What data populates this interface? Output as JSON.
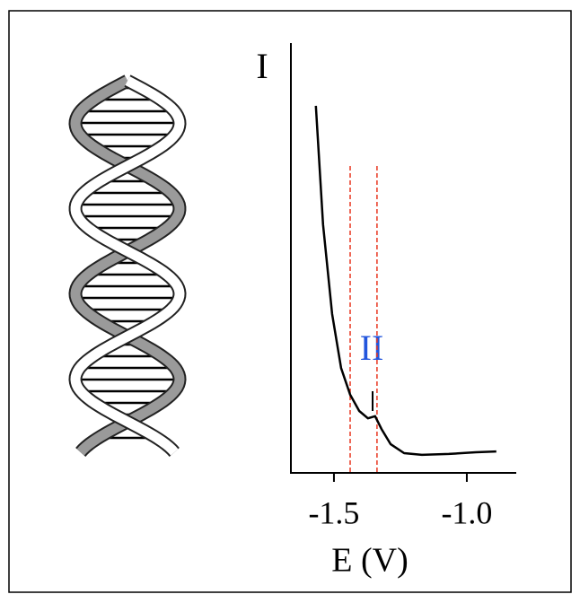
{
  "chart_data": {
    "type": "line",
    "ylabel": "I",
    "xlabel": "E (V)",
    "annotation": "II",
    "x": [
      -1.568,
      -1.541,
      -1.507,
      -1.473,
      -1.439,
      -1.405,
      -1.372,
      -1.345,
      -1.321,
      -1.287,
      -1.236,
      -1.169,
      -1.068,
      -0.966,
      -0.889
    ],
    "values": [
      85.4,
      57.8,
      37.0,
      24.4,
      18.2,
      14.4,
      12.7,
      13.2,
      10.2,
      6.7,
      4.6,
      4.2,
      4.4,
      4.8,
      5.0
    ],
    "color": "#000000",
    "xlim": [
      -1.662,
      -0.814
    ],
    "xticks": [
      -1.5,
      {
        "value": -1,
        "label": "-1.0"
      }
    ],
    "ylim": [
      0,
      100
    ],
    "markers": [
      {
        "value": -1.439,
        "color": "#e8351f"
      },
      {
        "value": -1.338,
        "color": "#e8351f"
      }
    ],
    "annotation_color": "#2255dd"
  }
}
